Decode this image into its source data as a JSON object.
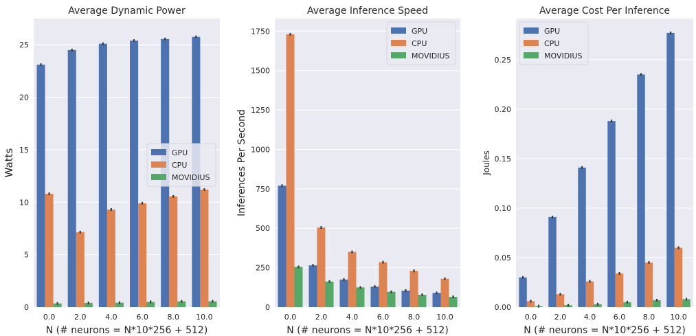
{
  "chart_data": [
    {
      "type": "bar",
      "title": "Average Dynamic Power",
      "xlabel": "N (# neurons = N*10*256 + 512)",
      "ylabel": "Watts",
      "categories": [
        "0.0",
        "2.0",
        "4.0",
        "6.0",
        "8.0",
        "10.0"
      ],
      "ylim": [
        0,
        27.5
      ],
      "yticks": [
        0,
        5,
        10,
        15,
        20,
        25
      ],
      "ytick_labels": [
        "0",
        "5",
        "10",
        "15",
        "20",
        "25"
      ],
      "grid": true,
      "legend_position": "center-right",
      "series": [
        {
          "name": "GPU",
          "color": "#4c72b0",
          "values": [
            23.1,
            24.5,
            25.1,
            25.4,
            25.55,
            25.75
          ]
        },
        {
          "name": "CPU",
          "color": "#dd8452",
          "values": [
            10.8,
            7.15,
            9.3,
            9.9,
            10.55,
            11.2
          ]
        },
        {
          "name": "MOVIDIUS",
          "color": "#55a868",
          "values": [
            0.35,
            0.4,
            0.42,
            0.5,
            0.55,
            0.55
          ]
        }
      ]
    },
    {
      "type": "bar",
      "title": "Average Inference Speed",
      "xlabel": "N (# neurons = N*10*256 + 512)",
      "ylabel": "Inferences Per Second",
      "categories": [
        "0.0",
        "2.0",
        "4.0",
        "6.0",
        "8.0",
        "10.0"
      ],
      "ylim": [
        0,
        1830
      ],
      "yticks": [
        0,
        250,
        500,
        750,
        1000,
        1250,
        1500,
        1750
      ],
      "ytick_labels": [
        "0",
        "250",
        "500",
        "750",
        "1000",
        "1250",
        "1500",
        "1750"
      ],
      "grid": true,
      "legend_position": "top-right",
      "series": [
        {
          "name": "GPU",
          "color": "#4c72b0",
          "values": [
            770,
            265,
            175,
            130,
            105,
            90
          ]
        },
        {
          "name": "CPU",
          "color": "#dd8452",
          "values": [
            1730,
            505,
            350,
            285,
            230,
            180
          ]
        },
        {
          "name": "MOVIDIUS",
          "color": "#55a868",
          "values": [
            255,
            162,
            125,
            97,
            78,
            65
          ]
        }
      ]
    },
    {
      "type": "bar",
      "title": "Average Cost Per Inference",
      "xlabel": "N (# neurons = N*10*256 + 512)",
      "ylabel": "Joules",
      "categories": [
        "0.0",
        "2.0",
        "4.0",
        "6.0",
        "8.0",
        "10.0"
      ],
      "ylim": [
        0,
        0.2915
      ],
      "yticks": [
        0,
        0.05,
        0.1,
        0.15,
        0.2,
        0.25
      ],
      "ytick_labels": [
        "0.00",
        "0.05",
        "0.10",
        "0.15",
        "0.20",
        "0.25"
      ],
      "grid": true,
      "legend_position": "top-left",
      "series": [
        {
          "name": "GPU",
          "color": "#4c72b0",
          "values": [
            0.03,
            0.091,
            0.141,
            0.188,
            0.235,
            0.277
          ]
        },
        {
          "name": "CPU",
          "color": "#dd8452",
          "values": [
            0.006,
            0.013,
            0.026,
            0.034,
            0.045,
            0.06
          ]
        },
        {
          "name": "MOVIDIUS",
          "color": "#55a868",
          "values": [
            0.001,
            0.002,
            0.003,
            0.005,
            0.007,
            0.008
          ]
        }
      ]
    }
  ]
}
